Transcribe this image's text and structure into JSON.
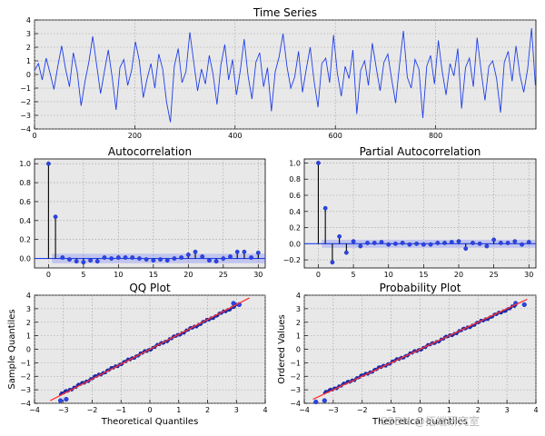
{
  "watermark": "CSDN @拓端研究室",
  "chart_data": [
    {
      "type": "line",
      "title": "Time Series",
      "xlim": [
        0,
        1000
      ],
      "ylim": [
        -4,
        4
      ],
      "xticks": [
        0,
        200,
        400,
        600,
        800
      ],
      "yticks": [
        -4,
        -3,
        -2,
        -1,
        0,
        1,
        2,
        3,
        4
      ],
      "color": "#1f3fe6",
      "grid": true,
      "x_range": [
        0,
        999
      ],
      "values": [
        0.3,
        0.8,
        -0.4,
        1.2,
        0.1,
        -1.1,
        0.6,
        2.1,
        0.4,
        -0.9,
        1.6,
        0.2,
        -2.3,
        -0.5,
        0.9,
        2.8,
        0.7,
        -1.4,
        0.2,
        1.8,
        -0.2,
        -2.6,
        0.5,
        1.1,
        -0.8,
        0.3,
        2.4,
        1.0,
        -1.7,
        -0.3,
        0.8,
        -1.0,
        1.5,
        0.4,
        -2.0,
        -3.5,
        0.6,
        1.9,
        -0.6,
        0.2,
        3.1,
        0.9,
        -1.2,
        0.4,
        -0.7,
        1.4,
        0.0,
        -2.2,
        0.7,
        2.2,
        -0.4,
        1.1,
        -1.5,
        0.3,
        2.6,
        -0.1,
        -1.8,
        0.9,
        1.6,
        -0.9,
        0.5,
        -2.7,
        0.2,
        1.3,
        3.0,
        0.6,
        -1.0,
        -0.2,
        1.7,
        -1.3,
        0.4,
        2.0,
        -0.5,
        -2.4,
        0.8,
        1.2,
        -0.6,
        2.9,
        0.1,
        -1.6,
        0.6,
        -0.3,
        1.8,
        -2.9,
        0.3,
        1.0,
        -0.8,
        2.3,
        0.5,
        -1.2,
        0.9,
        1.5,
        -0.4,
        -2.1,
        0.7,
        3.2,
        -0.2,
        -1.0,
        1.1,
        0.4,
        -3.2,
        0.6,
        1.4,
        -0.7,
        2.5,
        0.2,
        -1.5,
        0.8,
        -0.1,
        1.9,
        -2.5,
        0.5,
        1.2,
        -0.9,
        2.7,
        0.3,
        -1.9,
        0.6,
        1.0,
        -0.3,
        -2.8,
        0.9,
        1.7,
        -0.5,
        2.1,
        0.0,
        -1.3,
        0.4,
        3.4,
        -0.8
      ],
      "xlabel": "",
      "ylabel": ""
    },
    {
      "type": "stem",
      "title": "Autocorrelation",
      "xlim": [
        -2,
        31
      ],
      "ylim": [
        -0.1,
        1.05
      ],
      "xticks": [
        0,
        5,
        10,
        15,
        20,
        25,
        30
      ],
      "yticks": [
        0.0,
        0.2,
        0.4,
        0.6,
        0.8,
        1.0
      ],
      "ytick_labels": [
        "0.0",
        "0.2",
        "0.4",
        "0.6",
        "0.8",
        "1.0"
      ],
      "lags": [
        0,
        1,
        2,
        3,
        4,
        5,
        6,
        7,
        8,
        9,
        10,
        11,
        12,
        13,
        14,
        15,
        16,
        17,
        18,
        19,
        20,
        21,
        22,
        23,
        24,
        25,
        26,
        27,
        28,
        29,
        30
      ],
      "values": [
        1.0,
        0.44,
        0.01,
        -0.01,
        -0.03,
        -0.04,
        -0.02,
        -0.03,
        0.01,
        0.0,
        0.01,
        0.01,
        0.01,
        0.0,
        -0.01,
        -0.02,
        -0.01,
        -0.02,
        0.0,
        0.01,
        0.04,
        0.07,
        0.02,
        -0.02,
        -0.03,
        0.0,
        0.02,
        0.07,
        0.07,
        0.01,
        0.06
      ],
      "confidence": 0.05,
      "grid": true,
      "xlabel": "",
      "ylabel": ""
    },
    {
      "type": "stem",
      "title": "Partial Autocorrelation",
      "xlim": [
        -2,
        31
      ],
      "ylim": [
        -0.3,
        1.05
      ],
      "xticks": [
        0,
        5,
        10,
        15,
        20,
        25,
        30
      ],
      "yticks": [
        -0.2,
        0.0,
        0.2,
        0.4,
        0.6,
        0.8,
        1.0
      ],
      "ytick_labels": [
        "−0.2",
        "0.0",
        "0.2",
        "0.4",
        "0.6",
        "0.8",
        "1.0"
      ],
      "lags": [
        0,
        1,
        2,
        3,
        4,
        5,
        6,
        7,
        8,
        9,
        10,
        11,
        12,
        13,
        14,
        15,
        16,
        17,
        18,
        19,
        20,
        21,
        22,
        23,
        24,
        25,
        26,
        27,
        28,
        29,
        30
      ],
      "values": [
        1.0,
        0.44,
        -0.23,
        0.09,
        -0.11,
        0.03,
        -0.03,
        0.01,
        0.01,
        0.02,
        -0.01,
        0.0,
        0.01,
        -0.01,
        0.0,
        -0.01,
        -0.01,
        0.01,
        0.01,
        0.02,
        0.03,
        -0.06,
        0.01,
        0.0,
        -0.03,
        0.05,
        0.01,
        0.01,
        0.03,
        -0.01,
        0.02
      ],
      "confidence": 0.05,
      "grid": true,
      "xlabel": "",
      "ylabel": ""
    },
    {
      "type": "scatter",
      "title": "QQ Plot",
      "xlabel": "Theoretical Quantiles",
      "ylabel": "Sample Quantiles",
      "xlim": [
        -4,
        4
      ],
      "ylim": [
        -4,
        4
      ],
      "xticks": [
        -4,
        -3,
        -2,
        -1,
        0,
        1,
        2,
        3,
        4
      ],
      "yticks": [
        -4,
        -3,
        -2,
        -1,
        0,
        1,
        2,
        3,
        4
      ],
      "theoretical_range": [
        -3.1,
        3.1
      ],
      "line": {
        "slope": 1.1,
        "intercept": 0.0,
        "color": "#ff3030"
      },
      "outliers": [
        [
          -3.1,
          -3.8
        ],
        [
          -2.9,
          -3.7
        ],
        [
          2.9,
          3.4
        ],
        [
          3.1,
          3.3
        ]
      ],
      "grid": true
    },
    {
      "type": "scatter",
      "title": "Probability Plot",
      "xlabel": "Theoretical quantiles",
      "ylabel": "Ordered Values",
      "xlim": [
        -4,
        4
      ],
      "ylim": [
        -4,
        4
      ],
      "xticks": [
        -4,
        -3,
        -2,
        -1,
        0,
        1,
        2,
        3,
        4
      ],
      "yticks": [
        -4,
        -3,
        -2,
        -1,
        0,
        1,
        2,
        3,
        4
      ],
      "theoretical_range": [
        -3.3,
        3.3
      ],
      "line": {
        "slope": 1.0,
        "intercept": 0.0,
        "color": "#ff3030"
      },
      "outliers": [
        [
          -3.6,
          -3.9
        ],
        [
          -3.3,
          -3.8
        ],
        [
          3.3,
          3.4
        ],
        [
          3.6,
          3.3
        ]
      ],
      "grid": true
    }
  ]
}
